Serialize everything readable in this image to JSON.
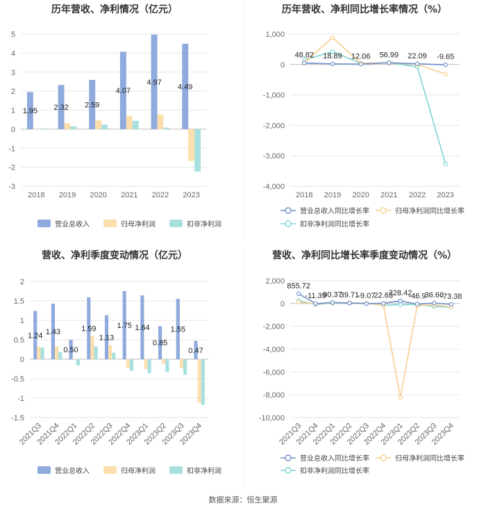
{
  "source_text": "数据来源：恒生聚源",
  "colors": {
    "revenue": "#8faadc",
    "net_profit": "#fddfae",
    "deducted": "#a8e0e0",
    "revenue_line": "#6f8fc9",
    "net_profit_line": "#f8cf8d",
    "deducted_line": "#7fd3d3",
    "grid": "#e6e6e6",
    "axis": "#bbbbbb"
  },
  "chart_data": [
    {
      "type": "bar",
      "title": "历年营收、净利情况（亿元）",
      "categories": [
        "2018",
        "2019",
        "2020",
        "2021",
        "2022",
        "2023"
      ],
      "ylim": [
        -3,
        5
      ],
      "yticks": [
        "5",
        "4",
        "3",
        "2",
        "1",
        "0",
        "-1",
        "-2",
        "-3"
      ],
      "grid": true,
      "legend_position": "bottom",
      "series": [
        {
          "name": "营业总收入",
          "values": [
            1.95,
            2.32,
            2.59,
            4.07,
            4.97,
            4.49
          ],
          "labels": [
            "1.95",
            "2.32",
            "2.59",
            "4.07",
            "4.97",
            "4.49"
          ]
        },
        {
          "name": "归母净利润",
          "values": [
            0.0,
            0.31,
            0.46,
            0.69,
            0.77,
            -1.67
          ]
        },
        {
          "name": "扣非净利润",
          "values": [
            0.03,
            0.15,
            0.24,
            0.44,
            0.08,
            -2.23
          ]
        }
      ]
    },
    {
      "type": "line",
      "title": "历年营收、净利同比增长率情况（%）",
      "categories": [
        "2018",
        "2019",
        "2020",
        "2021",
        "2022",
        "2023"
      ],
      "ylim": [
        -4000,
        1000
      ],
      "yticks": [
        "1,000",
        "0",
        "-1,000",
        "-2,000",
        "-3,000",
        "-4,000"
      ],
      "grid": true,
      "legend_position": "bottom",
      "series": [
        {
          "name": "营业总收入同比增长率",
          "values": [
            48.82,
            18.89,
            12.06,
            56.99,
            22.09,
            -9.65
          ],
          "labels": [
            "48.82",
            "18.89",
            "12.06",
            "56.99",
            "22.09",
            "-9.65"
          ]
        },
        {
          "name": "归母净利润同比增长率",
          "values": [
            60,
            880,
            45,
            55,
            7,
            -318
          ]
        },
        {
          "name": "扣非净利润同比增长率",
          "values": [
            150,
            420,
            38,
            60,
            -80,
            -3260
          ]
        }
      ]
    },
    {
      "type": "bar",
      "title": "营收、净利季度变动情况（亿元）",
      "categories": [
        "2021Q3",
        "2021Q4",
        "2022Q1",
        "2022Q2",
        "2022Q3",
        "2022Q4",
        "2023Q1",
        "2023Q2",
        "2023Q3",
        "2023Q4"
      ],
      "ylim": [
        -1.5,
        2
      ],
      "yticks": [
        "2",
        "1.5",
        "1",
        "0.5",
        "0",
        "-0.5",
        "-1",
        "-1.5"
      ],
      "grid": true,
      "legend_position": "bottom",
      "series": [
        {
          "name": "营业总收入",
          "values": [
            1.24,
            1.43,
            0.5,
            1.59,
            1.13,
            1.75,
            1.64,
            0.85,
            1.55,
            0.47
          ],
          "labels": [
            "1.24",
            "1.43",
            "0.50",
            "1.59",
            "1.13",
            "1.75",
            "1.64",
            "0.85",
            "1.55",
            "0.47"
          ]
        },
        {
          "name": "归母净利润",
          "values": [
            0.32,
            0.33,
            0.02,
            0.6,
            0.36,
            -0.22,
            -0.25,
            -0.12,
            -0.22,
            -1.12
          ]
        },
        {
          "name": "扣非净利润",
          "values": [
            0.3,
            0.19,
            -0.16,
            0.33,
            0.17,
            -0.3,
            -0.36,
            -0.33,
            -0.4,
            -1.17
          ]
        }
      ]
    },
    {
      "type": "line",
      "title": "营收、净利同比增长率季度变动情况（%）",
      "categories": [
        "2021Q3",
        "2021Q4",
        "2022Q1",
        "2022Q2",
        "2022Q3",
        "2022Q4",
        "2023Q1",
        "2023Q2",
        "2023Q3",
        "2023Q4"
      ],
      "ylim": [
        -10000,
        2000
      ],
      "yticks": [
        "2,000",
        "0",
        "-2,000",
        "-4,000",
        "-6,000",
        "-8,000",
        "-10,000"
      ],
      "grid": true,
      "legend_position": "bottom",
      "series": [
        {
          "name": "营业总收入同比增长率",
          "values": [
            855.72,
            -11.39,
            90.37,
            39.71,
            -9.07,
            22.63,
            228.42,
            -46.9,
            36.66,
            -73.38
          ],
          "labels": [
            "855.72",
            "-11.39",
            "90.37",
            "39.71",
            "-9.07",
            "22.63",
            "228.42",
            "-46.9",
            "36.66",
            "-73.38"
          ]
        },
        {
          "name": "归母净利润同比增长率",
          "values": [
            120,
            -30,
            60,
            70,
            15,
            -120,
            -8250,
            -180,
            -120,
            -300
          ]
        },
        {
          "name": "扣非净利润同比增长率",
          "values": [
            250,
            -80,
            35,
            60,
            20,
            -150,
            -100,
            -100,
            -260,
            -320
          ]
        }
      ]
    }
  ]
}
